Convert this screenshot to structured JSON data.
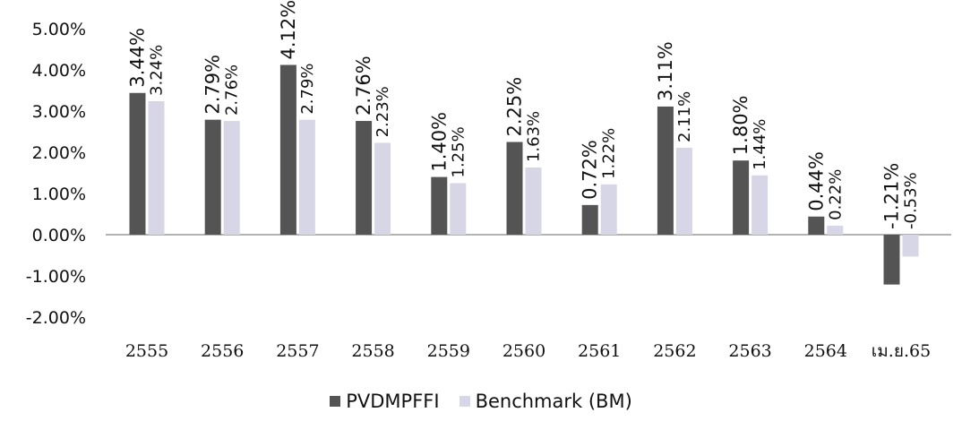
{
  "chart_data": {
    "type": "bar",
    "categories": [
      "2555",
      "2556",
      "2557",
      "2558",
      "2559",
      "2560",
      "2561",
      "2562",
      "2563",
      "2564",
      "เม.ย.65"
    ],
    "series": [
      {
        "name": "PVDMPFFI",
        "color": "#545454",
        "values": [
          3.44,
          2.79,
          4.12,
          2.76,
          1.4,
          2.25,
          0.72,
          3.11,
          1.8,
          0.44,
          -1.21
        ],
        "labels": [
          "3.44%",
          "2.79%",
          "4.12%",
          "2.76%",
          "1.40%",
          "2.25%",
          "0.72%",
          "3.11%",
          "1.80%",
          "0.44%",
          "-1.21%"
        ]
      },
      {
        "name": "Benchmark (BM)",
        "color": "#d6d6e6",
        "values": [
          3.24,
          2.76,
          2.79,
          2.23,
          1.25,
          1.63,
          1.22,
          2.11,
          1.44,
          0.22,
          -0.53
        ],
        "labels": [
          "3.24%",
          "2.76%",
          "2.79%",
          "2.23%",
          "1.25%",
          "1.63%",
          "1.22%",
          "2.11%",
          "1.44%",
          "0.22%",
          "-0.53%"
        ]
      }
    ],
    "ylim": [
      -2,
      5
    ],
    "yticks": [
      "-2.00%",
      "-1.00%",
      "0.00%",
      "1.00%",
      "2.00%",
      "3.00%",
      "4.00%",
      "5.00%"
    ],
    "ytick_values": [
      -2,
      -1,
      0,
      1,
      2,
      3,
      4,
      5
    ],
    "grid": false,
    "legend_position": "bottom-center"
  }
}
